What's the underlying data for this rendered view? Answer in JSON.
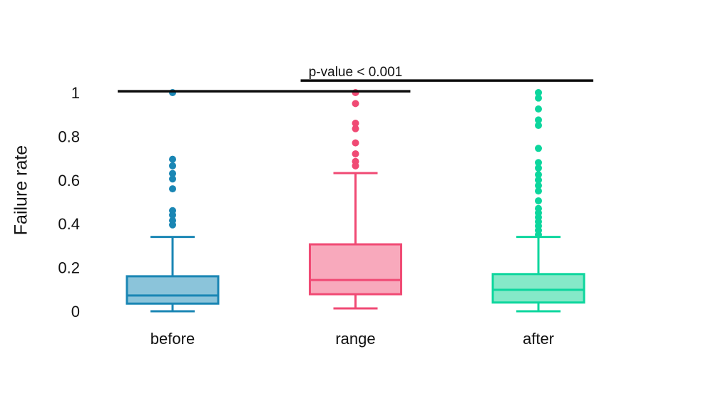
{
  "chart_data": {
    "type": "boxplot",
    "title": "",
    "ylabel": "Failure rate",
    "xlabel": "",
    "ylim": [
      0,
      1
    ],
    "yticks": [
      0,
      0.2,
      0.4,
      0.6,
      0.8,
      1
    ],
    "ytick_labels": [
      "0",
      "0.2",
      "0.4",
      "0.6",
      "0.8",
      "1"
    ],
    "categories": [
      "before",
      "range",
      "after"
    ],
    "grid": false,
    "axis_lines": false,
    "series": [
      {
        "name": "before",
        "stroke_color": "#1a86b4",
        "fill_color": "#8bc4da",
        "whisker_low": 0.0,
        "q1": 0.035,
        "median": 0.072,
        "q3": 0.16,
        "whisker_high": 0.34,
        "outliers": [
          1.0,
          0.695,
          0.665,
          0.63,
          0.605,
          0.56,
          0.46,
          0.44,
          0.415,
          0.395
        ]
      },
      {
        "name": "range",
        "stroke_color": "#f04a74",
        "fill_color": "#f8a9bc",
        "whisker_low": 0.013,
        "q1": 0.078,
        "median": 0.143,
        "q3": 0.306,
        "whisker_high": 0.632,
        "outliers": [
          1.0,
          0.95,
          0.86,
          0.835,
          0.77,
          0.72,
          0.685,
          0.665
        ]
      },
      {
        "name": "after",
        "stroke_color": "#0cd69d",
        "fill_color": "#85e9c8",
        "whisker_low": 0.0,
        "q1": 0.04,
        "median": 0.098,
        "q3": 0.17,
        "whisker_high": 0.34,
        "outliers": [
          1.0,
          0.975,
          0.925,
          0.875,
          0.85,
          0.745,
          0.68,
          0.655,
          0.625,
          0.6,
          0.575,
          0.55,
          0.505,
          0.47,
          0.45,
          0.43,
          0.41,
          0.39,
          0.37,
          0.35
        ]
      }
    ],
    "annotation": {
      "label": "p-value < 0.001",
      "label_color": "#111111",
      "bar_color": "#0d0d0d",
      "bars": [
        {
          "x1_cat": 0.7,
          "x2_cat": 2.3,
          "y_value": 1.006
        },
        {
          "x1_cat": 1.7,
          "x2_cat": 3.3,
          "y_value": 1.055
        }
      ],
      "label_x_cat": 2.0,
      "label_above_bar": 1
    }
  }
}
